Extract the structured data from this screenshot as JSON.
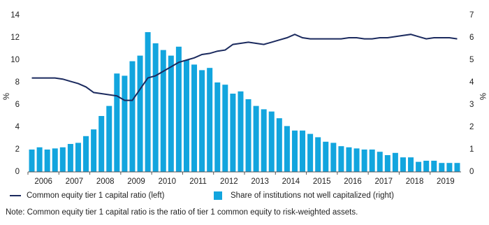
{
  "chart_data": {
    "type": "bar-line",
    "categories": [
      null,
      "2006",
      null,
      null,
      null,
      "2007",
      null,
      null,
      null,
      "2008",
      null,
      null,
      null,
      "2009",
      null,
      null,
      null,
      "2010",
      null,
      null,
      null,
      "2011",
      null,
      null,
      null,
      "2012",
      null,
      null,
      null,
      "2013",
      null,
      null,
      null,
      "2014",
      null,
      null,
      null,
      "2015",
      null,
      null,
      null,
      "2016",
      null,
      null,
      null,
      "2017",
      null,
      null,
      null,
      "2018",
      null,
      null,
      null,
      "2019",
      null,
      null
    ],
    "series": [
      {
        "name": "Common equity tier 1 capital ratio (left)",
        "type": "line",
        "color": "#1b2a5e",
        "axis": "y",
        "values": [
          8.4,
          8.4,
          8.4,
          8.4,
          8.3,
          8.1,
          7.9,
          7.6,
          7.1,
          7.0,
          6.9,
          6.8,
          6.4,
          6.4,
          7.4,
          8.4,
          8.6,
          9.0,
          9.4,
          9.8,
          10.0,
          10.2,
          10.5,
          10.6,
          10.8,
          10.9,
          11.4,
          11.5,
          11.6,
          11.5,
          11.4,
          11.6,
          11.8,
          12.0,
          12.3,
          12.0,
          11.9,
          11.9,
          11.9,
          11.9,
          11.9,
          12.0,
          12.0,
          11.9,
          11.9,
          12.0,
          12.0,
          12.1,
          12.2,
          12.3,
          12.1,
          11.9,
          12.0,
          12.0,
          12.0,
          11.9
        ]
      },
      {
        "name": "Share of institutions not well capitalized (right)",
        "type": "bar",
        "color": "#12a5de",
        "axis": "y2",
        "values": [
          1.0,
          1.1,
          1.0,
          1.05,
          1.1,
          1.25,
          1.3,
          1.6,
          1.9,
          2.5,
          2.95,
          4.4,
          4.3,
          4.95,
          5.2,
          6.25,
          5.75,
          5.45,
          5.2,
          5.6,
          5.0,
          4.8,
          4.55,
          4.65,
          4.0,
          3.9,
          3.5,
          3.6,
          3.25,
          2.95,
          2.8,
          2.7,
          2.4,
          2.05,
          1.85,
          1.85,
          1.7,
          1.55,
          1.35,
          1.3,
          1.15,
          1.1,
          1.05,
          1.0,
          1.0,
          0.9,
          0.75,
          0.85,
          0.65,
          0.65,
          0.45,
          0.5,
          0.5,
          0.4,
          0.4,
          0.4
        ]
      }
    ],
    "ylabel": "%",
    "y2label": "%",
    "ylim": [
      0,
      14
    ],
    "yticks": [
      0,
      2,
      4,
      6,
      8,
      10,
      12,
      14
    ],
    "y2lim": [
      0,
      7
    ],
    "y2ticks": [
      0,
      1,
      2,
      3,
      4,
      5,
      6,
      7
    ],
    "note": "Note: Common equity tier 1 capital ratio is the ratio of tier 1 common equity to risk-weighted assets."
  }
}
